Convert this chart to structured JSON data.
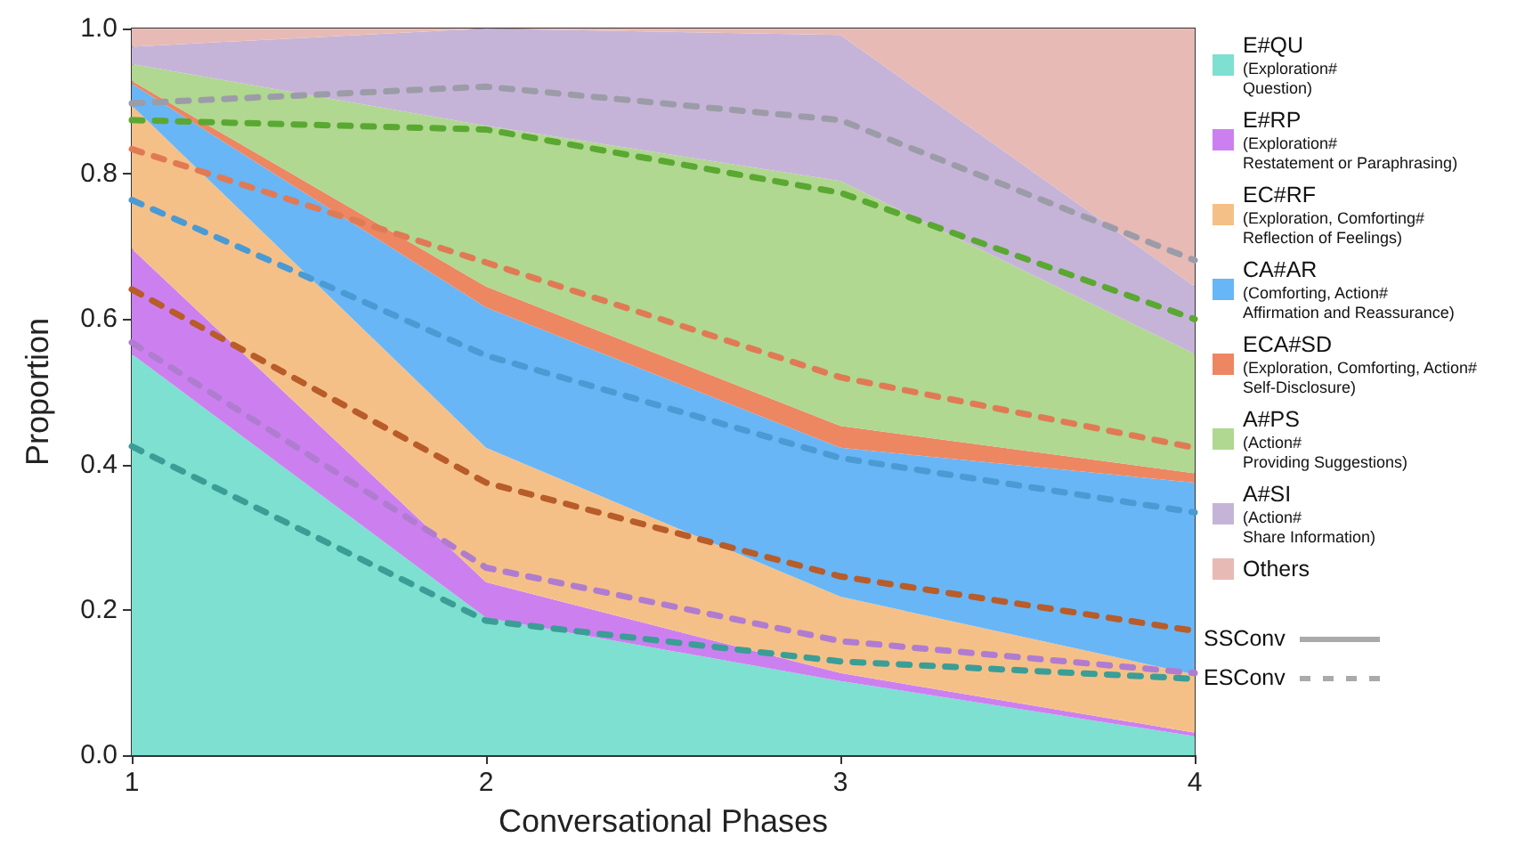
{
  "chart_data": {
    "type": "area",
    "stacked": true,
    "xlabel": "Conversational Phases",
    "ylabel": "Proportion",
    "categories": [
      "1",
      "2",
      "3",
      "4"
    ],
    "ylim": [
      0,
      1
    ],
    "yticks": [
      {
        "value": 0,
        "label": "0.0"
      },
      {
        "value": 0.2,
        "label": "0.2"
      },
      {
        "value": 0.4,
        "label": "0.4"
      },
      {
        "value": 0.6,
        "label": "0.6"
      },
      {
        "value": 0.8,
        "label": "0.8"
      },
      {
        "value": 1,
        "label": "1.0"
      }
    ],
    "grid": false,
    "legend": "right",
    "marker": "none",
    "annotations": [
      "SSConv",
      "ESConv"
    ],
    "series": [
      {
        "name": "E#QU\n(Exploration#\nQuestion)",
        "color": "#7de0d0",
        "values": [
          0.552,
          0.189,
          0.102,
          0.026
        ]
      },
      {
        "name": "E#RP\n(Exploration#\nRestatement or Paraphrasing)",
        "color": "#cc80f0",
        "values": [
          0.145,
          0.049,
          0.011,
          0.005
        ]
      },
      {
        "name": "EC#RF\n(Exploration, Comforting#\nReflection of Feelings)",
        "color": "#f5c088",
        "values": [
          0.197,
          0.185,
          0.105,
          0.08
        ]
      },
      {
        "name": "CA#AR\n(Comforting, Action#\nAffirmation and Reassurance)",
        "color": "#68b6f5",
        "values": [
          0.03,
          0.193,
          0.205,
          0.264
        ]
      },
      {
        "name": "ECA#SD\n(Exploration, Comforting, Action#\nSelf-Disclosure)",
        "color": "#ec8762",
        "values": [
          0.004,
          0.029,
          0.03,
          0.013
        ]
      },
      {
        "name": "A#PS\n(Action#\nProviding Suggestions)",
        "color": "#b0d890",
        "values": [
          0.023,
          0.221,
          0.337,
          0.164
        ]
      },
      {
        "name": "A#SI\n(Action#\nShare Information)",
        "color": "#c6b4d8",
        "values": [
          0.024,
          0.134,
          0.201,
          0.093
        ]
      },
      {
        "name": "Others",
        "color": "#e8bab5",
        "values": [
          0.025,
          0,
          0.009,
          0.355
        ]
      },
      {
        "type": "line",
        "line_style": "dashed",
        "color": "#3a9e96",
        "values": [
          0.425,
          0.185,
          0.129,
          0.105
        ]
      },
      {
        "type": "line",
        "line_style": "dashed",
        "color": "#b07cd0",
        "values": [
          0.568,
          0.258,
          0.157,
          0.113
        ]
      },
      {
        "type": "line",
        "line_style": "dashed",
        "color": "#b85c2a",
        "values": [
          0.641,
          0.375,
          0.246,
          0.171
        ]
      },
      {
        "type": "line",
        "line_style": "dashed",
        "color": "#4a9ad4",
        "values": [
          0.764,
          0.55,
          0.409,
          0.334
        ]
      },
      {
        "type": "line",
        "line_style": "dashed",
        "color": "#e07a55",
        "values": [
          0.834,
          0.678,
          0.52,
          0.423
        ]
      },
      {
        "type": "line",
        "line_style": "dashed",
        "color": "#5aa832",
        "values": [
          0.874,
          0.861,
          0.774,
          0.6
        ]
      },
      {
        "type": "line",
        "line_style": "dashed",
        "color": "#9c9ca8",
        "values": [
          0.897,
          0.92,
          0.874,
          0.681
        ]
      }
    ]
  }
}
